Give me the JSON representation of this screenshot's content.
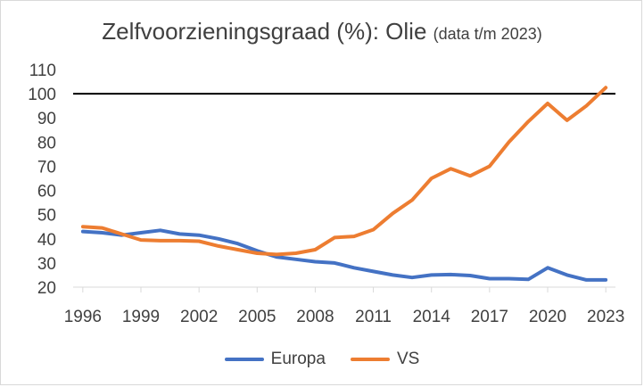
{
  "chart_data": {
    "type": "line",
    "title": "Zelfvoorzieningsgraad (%): Olie",
    "subtitle": "(data t/m 2023)",
    "x": [
      1996,
      1997,
      1998,
      1999,
      2000,
      2001,
      2002,
      2003,
      2004,
      2005,
      2006,
      2007,
      2008,
      2009,
      2010,
      2011,
      2012,
      2013,
      2014,
      2015,
      2016,
      2017,
      2018,
      2019,
      2020,
      2021,
      2022,
      2023
    ],
    "x_ticks": [
      1996,
      1999,
      2002,
      2005,
      2008,
      2011,
      2014,
      2017,
      2020,
      2023
    ],
    "xlim": [
      1995.5,
      2023.5
    ],
    "y_ticks": [
      20,
      30,
      40,
      50,
      60,
      70,
      80,
      90,
      100,
      110
    ],
    "ylim": [
      20,
      110
    ],
    "series": [
      {
        "name": "Europa",
        "color": "#4472C4",
        "values": [
          43,
          42.5,
          41.5,
          42.5,
          43.5,
          42,
          41.5,
          40,
          38,
          35,
          32.5,
          31.5,
          30.5,
          30,
          28,
          26.5,
          25,
          24,
          25,
          25.2,
          24.8,
          23.5,
          23.5,
          23.2,
          28,
          25,
          23,
          23
        ]
      },
      {
        "name": "VS",
        "color": "#ED7D31",
        "values": [
          45,
          44.5,
          42,
          39.5,
          39.2,
          39.2,
          39,
          37,
          35.5,
          34,
          33.5,
          34,
          35.5,
          40.5,
          41,
          43.8,
          50.5,
          56,
          65,
          69,
          66,
          70,
          80,
          88.5,
          96,
          89,
          95,
          102.5
        ]
      }
    ],
    "reference_line": {
      "value": 100,
      "color": "#000000"
    },
    "legend_position": "bottom",
    "grid": false
  }
}
